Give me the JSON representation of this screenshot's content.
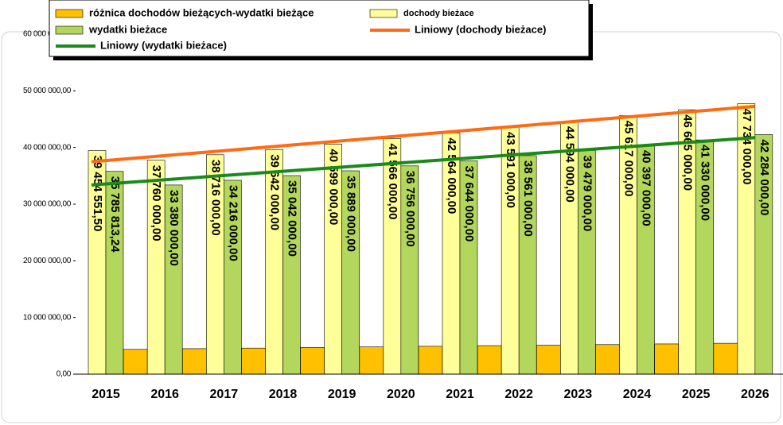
{
  "chart_data": {
    "type": "bar",
    "categories": [
      "2015",
      "2016",
      "2017",
      "2018",
      "2019",
      "2020",
      "2021",
      "2022",
      "2023",
      "2024",
      "2025",
      "2026"
    ],
    "series": [
      {
        "name": "różnica dochodów bieżących-wydatki bieżące",
        "color": "#ffc000",
        "values": [
          null,
          4380000,
          4500000,
          4600000,
          4710000,
          4810000,
          4920000,
          5030000,
          5115000,
          5220000,
          5335000,
          5450000
        ]
      },
      {
        "name": "dochody bieżace",
        "color": "#ffff99",
        "values": [
          39454551.5,
          37760000,
          38716000,
          39642000,
          40599000,
          41566000,
          42564000,
          43591000,
          44594000,
          45617000,
          46665000,
          47734000
        ],
        "value_labels": [
          "39 454 551,50",
          "37 760 000,00",
          "38 716 000,00",
          "39 642 000,00",
          "40 599 000,00",
          "41 566 000,00",
          "42 564 000,00",
          "43 591 000,00",
          "44 594 000,00",
          "45 617 000,00",
          "46 665 000,00",
          "47 734 000,00"
        ]
      },
      {
        "name": "wydatki bieżace",
        "color": "#b3d65c",
        "values": [
          35785813.24,
          33380000,
          34216000,
          35042000,
          35889000,
          36756000,
          37644000,
          38561000,
          39479000,
          40397000,
          41330000,
          42284000
        ],
        "value_labels": [
          "35 785 813,24",
          "33 380 000,00",
          "34 216 000,00",
          "35 042 000,00",
          "35 889 000,00",
          "36 756 000,00",
          "37 644 000,00",
          "38 561 000,00",
          "39 479 000,00",
          "40 397 000,00",
          "41 330 000,00",
          "42 284 000,00"
        ]
      }
    ],
    "trendlines": [
      {
        "name": "Liniowy (dochody bieżace)",
        "color": "#ff6a13",
        "series": 1
      },
      {
        "name": "Liniowy (wydatki bieżace)",
        "color": "#1a8a1a",
        "series": 2
      }
    ],
    "ylim": [
      0,
      60000000
    ],
    "yticks": [
      {
        "value": 0,
        "label": "0,00"
      },
      {
        "value": 10000000,
        "label": "10 000 000,00"
      },
      {
        "value": 20000000,
        "label": "20 000 000,00"
      },
      {
        "value": 30000000,
        "label": "30 000 000,00"
      },
      {
        "value": 40000000,
        "label": "40 000 000,00"
      },
      {
        "value": 50000000,
        "label": "50 000 000,00"
      },
      {
        "value": 60000000,
        "label": "60 000 000,00"
      }
    ]
  }
}
